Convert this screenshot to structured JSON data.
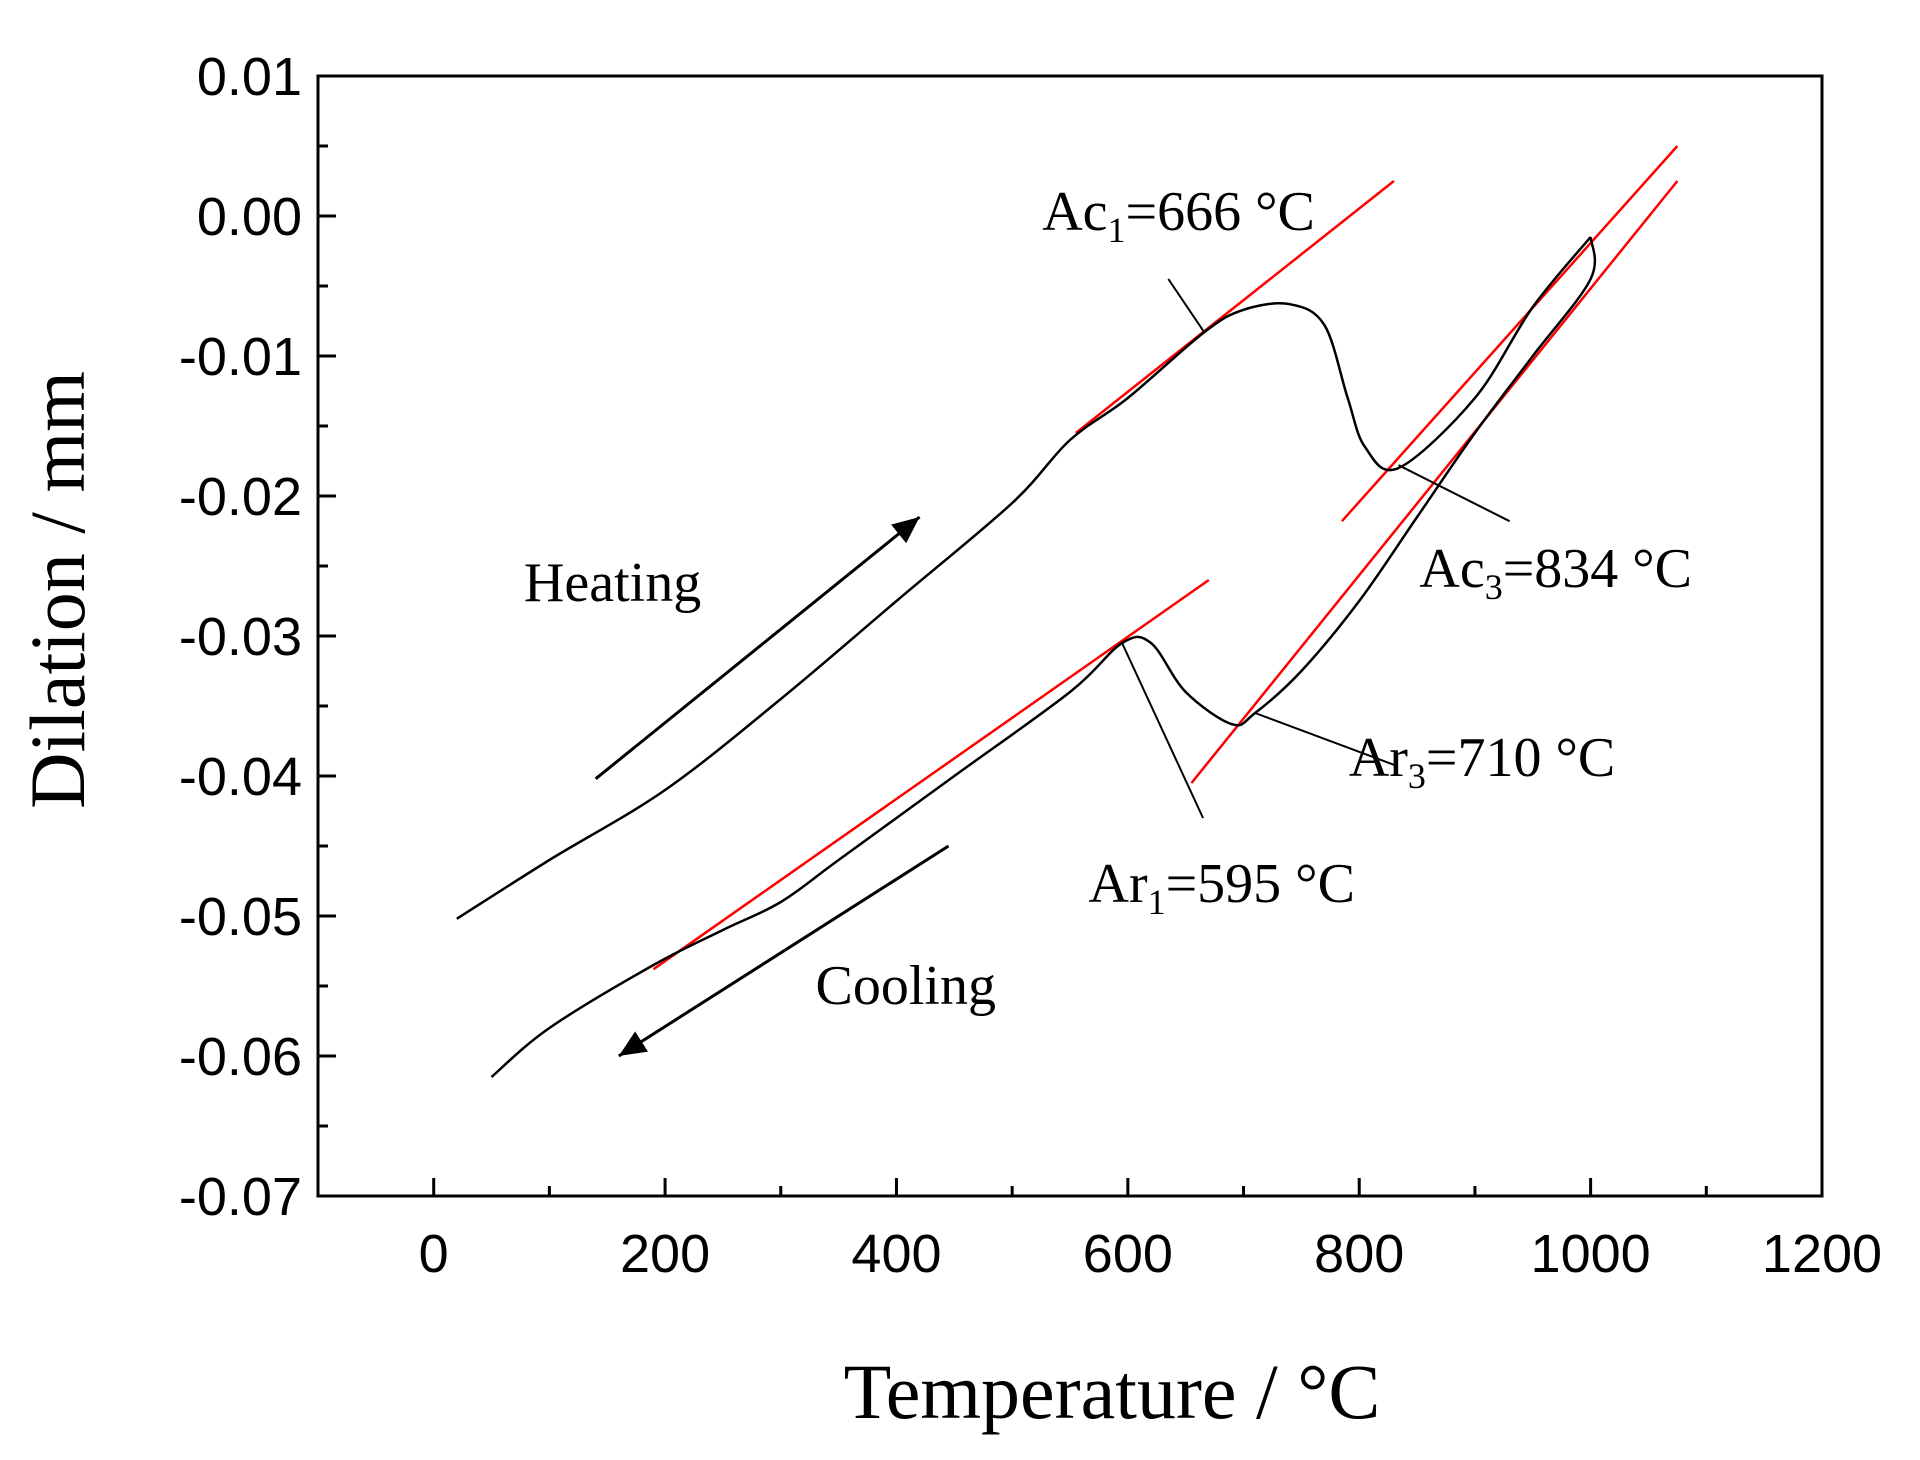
{
  "chart_data": {
    "type": "line",
    "title": "",
    "xlabel": "Temperature / °C",
    "ylabel": "Dilation / mm",
    "xlim": [
      -100,
      1200
    ],
    "ylim": [
      -0.07,
      0.01
    ],
    "xticks": [
      0,
      200,
      400,
      600,
      800,
      1000,
      1200
    ],
    "xtick_labels": [
      "0",
      "200",
      "400",
      "600",
      "800",
      "1000",
      "1200"
    ],
    "yticks": [
      0.01,
      0.0,
      -0.01,
      -0.02,
      -0.03,
      -0.04,
      -0.05,
      -0.06,
      -0.07
    ],
    "ytick_labels": [
      "0.01",
      "0.00",
      "-0.01",
      "-0.02",
      "-0.03",
      "-0.04",
      "-0.05",
      "-0.06",
      "-0.07"
    ],
    "grid": false,
    "series": [
      {
        "name": "Heating",
        "color": "#000000",
        "points": [
          [
            20,
            -0.0502
          ],
          [
            100,
            -0.046
          ],
          [
            200,
            -0.041
          ],
          [
            300,
            -0.0345
          ],
          [
            400,
            -0.0275
          ],
          [
            500,
            -0.0205
          ],
          [
            550,
            -0.016
          ],
          [
            600,
            -0.013
          ],
          [
            666,
            -0.0083
          ],
          [
            700,
            -0.0067
          ],
          [
            740,
            -0.0063
          ],
          [
            770,
            -0.0078
          ],
          [
            790,
            -0.013
          ],
          [
            805,
            -0.0165
          ],
          [
            834,
            -0.018
          ],
          [
            900,
            -0.013
          ],
          [
            950,
            -0.0065
          ],
          [
            1000,
            -0.0015
          ]
        ]
      },
      {
        "name": "Cooling",
        "color": "#000000",
        "points": [
          [
            1000,
            -0.0015
          ],
          [
            1000,
            -0.0045
          ],
          [
            950,
            -0.01
          ],
          [
            900,
            -0.0155
          ],
          [
            850,
            -0.0215
          ],
          [
            800,
            -0.0275
          ],
          [
            750,
            -0.0325
          ],
          [
            710,
            -0.0355
          ],
          [
            690,
            -0.0363
          ],
          [
            650,
            -0.034
          ],
          [
            620,
            -0.0305
          ],
          [
            595,
            -0.0305
          ],
          [
            550,
            -0.034
          ],
          [
            450,
            -0.04
          ],
          [
            350,
            -0.046
          ],
          [
            300,
            -0.049
          ],
          [
            250,
            -0.051
          ],
          [
            190,
            -0.0535
          ],
          [
            100,
            -0.058
          ],
          [
            50,
            -0.0615
          ]
        ]
      }
    ],
    "tangent_lines": [
      {
        "color": "#ff0000",
        "from": [
          555,
          -0.0155
        ],
        "to": [
          830,
          0.0025
        ]
      },
      {
        "color": "#ff0000",
        "from": [
          785,
          -0.0218
        ],
        "to": [
          1075,
          0.005
        ]
      },
      {
        "color": "#ff0000",
        "from": [
          655,
          -0.0405
        ],
        "to": [
          1075,
          0.0025
        ]
      },
      {
        "color": "#ff0000",
        "from": [
          190,
          -0.0538
        ],
        "to": [
          670,
          -0.026
        ]
      }
    ],
    "direction_arrows": [
      {
        "name": "heating-arrow",
        "from": [
          140,
          -0.0402
        ],
        "to": [
          420,
          -0.0215
        ]
      },
      {
        "name": "cooling-arrow",
        "from": [
          445,
          -0.045
        ],
        "to": [
          160,
          -0.06
        ]
      }
    ],
    "annotations": [
      {
        "name": "ac1",
        "prefix": "Ac",
        "sub": "1",
        "rest": "=666 °C",
        "at": [
          526,
          -0.001
        ],
        "leader_from": [
          635,
          -0.0045
        ],
        "leader_to": [
          666,
          -0.0083
        ]
      },
      {
        "name": "ac3",
        "prefix": "Ac",
        "sub": "3",
        "rest": "=834 °C",
        "at": [
          852,
          -0.0265
        ],
        "leader_from": [
          930,
          -0.0218
        ],
        "leader_to": [
          834,
          -0.0178
        ]
      },
      {
        "name": "ar3",
        "prefix": "Ar",
        "sub": "3",
        "rest": "=710 °C",
        "at": [
          791,
          -0.04
        ],
        "leader_from": [
          830,
          -0.0392
        ],
        "leader_to": [
          710,
          -0.0355
        ]
      },
      {
        "name": "ar1",
        "prefix": "Ar",
        "sub": "1",
        "rest": "=595 °C",
        "at": [
          566,
          -0.049
        ],
        "leader_from": [
          665,
          -0.043
        ],
        "leader_to": [
          595,
          -0.0305
        ]
      },
      {
        "name": "heating",
        "text": "Heating",
        "at": [
          78,
          -0.0275
        ]
      },
      {
        "name": "cooling",
        "text": "Cooling",
        "at": [
          330,
          -0.0563
        ]
      }
    ]
  }
}
